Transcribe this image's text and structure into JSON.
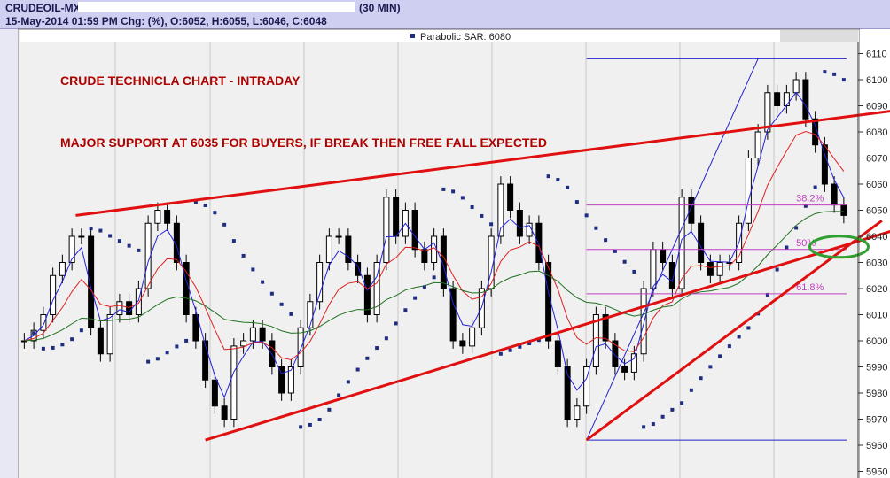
{
  "header": {
    "symbol": "CRUDEOIL-MX-",
    "period": "(30 MIN)",
    "info": "15-May-2014 01:59 PM Chg:  (%), O:6052, H:6055, L:6046, C:6048"
  },
  "legend": {
    "label": "Parabolic SAR: 6080"
  },
  "annotations": {
    "title": "CRUDE TECHNICLA CHART - INTRADAY",
    "note": "MAJOR SUPPORT AT 6035 FOR BUYERS, IF BREAK THEN FREE FALL EXPECTED",
    "fib382": "38.2%",
    "fib50": "50%",
    "fib618": "61.8%"
  },
  "colors": {
    "bull": "#ffffff",
    "bear": "#000000",
    "sar": "#1f2d80",
    "ma_fast": "#2222dd",
    "ma_mid": "#e02020",
    "ma_slow": "#207020",
    "trend": "#e01010",
    "annot": "#b00000",
    "fib": "#c040c0",
    "ellipse": "#30a030"
  },
  "chart_data": {
    "type": "candlestick",
    "yaxis": {
      "side": "right",
      "ticks": [
        5950,
        5960,
        5970,
        5980,
        5990,
        6000,
        6010,
        6020,
        6030,
        6040,
        6050,
        6060,
        6070,
        6080,
        6090,
        6100,
        6110
      ],
      "range": [
        5948,
        6115
      ]
    },
    "closes": [
      6000,
      6004,
      6010,
      6025,
      6030,
      6040,
      6040,
      6005,
      5995,
      6010,
      6015,
      6010,
      6020,
      6045,
      6050,
      6045,
      6030,
      6010,
      6000,
      5985,
      5975,
      5970,
      5998,
      6000,
      6005,
      6000,
      5990,
      5980,
      5990,
      6005,
      6015,
      6030,
      6040,
      6040,
      6030,
      6025,
      6010,
      6030,
      6055,
      6040,
      6050,
      6035,
      6030,
      6040,
      6020,
      6000,
      5998,
      6005,
      6020,
      6040,
      6060,
      6050,
      6040,
      6045,
      6030,
      6000,
      5990,
      5970,
      5975,
      5990,
      6010,
      6000,
      5990,
      5988,
      5995,
      6020,
      6035,
      6030,
      6020,
      6055,
      6045,
      6030,
      6025,
      6030,
      6030,
      6045,
      6070,
      6080,
      6095,
      6090,
      6095,
      6100,
      6085,
      6075,
      6060,
      6052,
      6048
    ],
    "indicators": [
      "Parabolic SAR",
      "moving averages (3)"
    ],
    "trendlines": [
      {
        "from": [
          5.4,
          6048
        ],
        "to": [
          91,
          6088
        ]
      },
      {
        "from": [
          19,
          5962
        ],
        "to": [
          91,
          6042
        ]
      },
      {
        "from": [
          59,
          5962
        ],
        "to": [
          90,
          6046
        ]
      }
    ],
    "fibonacci": {
      "high": 6108,
      "low": 5962,
      "levels": [
        {
          "label": "38.2%",
          "value": 6052
        },
        {
          "label": "50%",
          "value": 6035
        },
        {
          "label": "61.8%",
          "value": 6018
        }
      ],
      "start_index": 59,
      "end_index": 86.3
    },
    "highlight": {
      "index": 85.5,
      "value": 6036
    }
  }
}
